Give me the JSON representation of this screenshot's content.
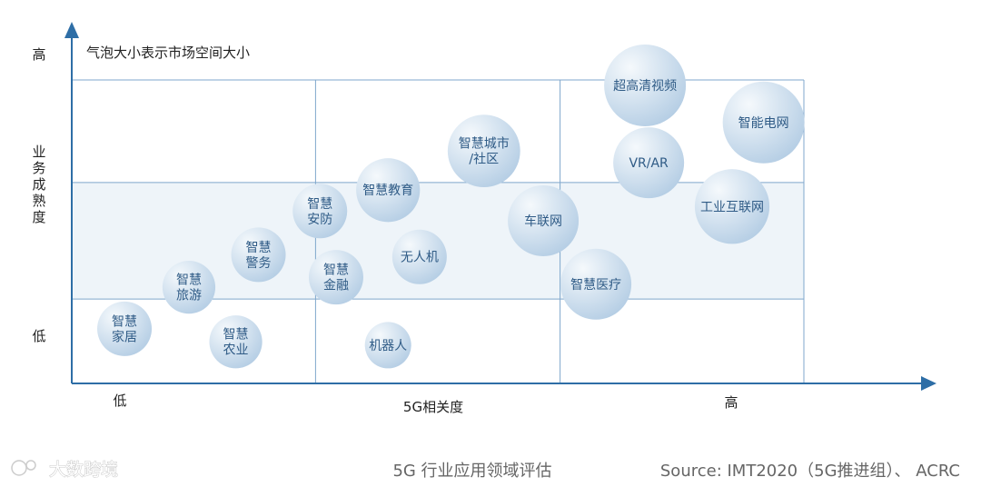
{
  "chart_data": {
    "type": "scatter",
    "subtype": "bubble",
    "note": "气泡大小表示市场空间大小",
    "xlabel": "5G相关度",
    "ylabel": "业务成熟度",
    "xlim": [
      0,
      100
    ],
    "ylim": [
      0,
      100
    ],
    "x_ticks": {
      "low": "低",
      "high": "高"
    },
    "y_ticks": {
      "low": "低",
      "high": "高"
    },
    "x_thresholds": [
      33.3,
      66.7
    ],
    "y_thresholds": [
      27.8,
      66.2
    ],
    "y_top": 100,
    "points": [
      {
        "name": "智慧家居",
        "lines": [
          "智慧",
          "家居"
        ],
        "x": 7.2,
        "y": 18.0,
        "size": 1.0
      },
      {
        "name": "智慧农业",
        "lines": [
          "智慧",
          "农业"
        ],
        "x": 22.4,
        "y": 13.7,
        "size": 0.97
      },
      {
        "name": "智慧旅游",
        "lines": [
          "智慧",
          "旅游"
        ],
        "x": 16.0,
        "y": 31.7,
        "size": 0.97
      },
      {
        "name": "智慧警务",
        "lines": [
          "智慧",
          "警务"
        ],
        "x": 25.5,
        "y": 42.4,
        "size": 1.0
      },
      {
        "name": "智慧安防",
        "lines": [
          "智慧",
          "安防"
        ],
        "x": 33.9,
        "y": 56.8,
        "size": 1.0
      },
      {
        "name": "智慧金融",
        "lines": [
          "智慧",
          "金融"
        ],
        "x": 36.1,
        "y": 35.0,
        "size": 1.0
      },
      {
        "name": "机器人",
        "lines": [
          "机器人"
        ],
        "x": 43.2,
        "y": 12.6,
        "size": 0.85
      },
      {
        "name": "智慧教育",
        "lines": [
          "智慧教育"
        ],
        "x": 43.2,
        "y": 63.7,
        "size": 1.17
      },
      {
        "name": "无人机",
        "lines": [
          "无人机"
        ],
        "x": 47.5,
        "y": 41.7,
        "size": 1.0
      },
      {
        "name": "智慧城市/社区",
        "lines": [
          "智慧城市",
          "/社区"
        ],
        "x": 56.3,
        "y": 76.6,
        "size": 1.33
      },
      {
        "name": "车联网",
        "lines": [
          "车联网"
        ],
        "x": 64.4,
        "y": 53.6,
        "size": 1.3
      },
      {
        "name": "智慧医疗",
        "lines": [
          "智慧医疗"
        ],
        "x": 71.6,
        "y": 32.7,
        "size": 1.3
      },
      {
        "name": "超高清视频",
        "lines": [
          "超高清视频"
        ],
        "x": 78.3,
        "y": 98.2,
        "size": 1.5
      },
      {
        "name": "VR/AR",
        "lines": [
          "VR/AR"
        ],
        "x": 78.8,
        "y": 72.7,
        "size": 1.3
      },
      {
        "name": "智能电网",
        "lines": [
          "智能电网"
        ],
        "x": 94.5,
        "y": 86.0,
        "size": 1.5
      },
      {
        "name": "工业互联网",
        "lines": [
          "工业互联网"
        ],
        "x": 90.2,
        "y": 58.3,
        "size": 1.37
      }
    ]
  },
  "footer": {
    "caption": "5G 行业应用领域评估",
    "source": "Source: IMT2020（5G推进组）、 ACRC",
    "watermark": "大数跨境"
  },
  "colors": {
    "axis": "#2e6ea6",
    "grid": "#7fa7cc",
    "band": "#eef4f9",
    "bubble_light": "#f5f9fc",
    "bubble_dark": "#b4cde4"
  }
}
